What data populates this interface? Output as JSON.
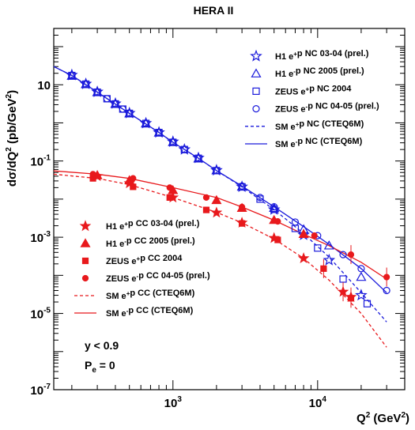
{
  "chart_data": {
    "type": "scatter",
    "title": "HERA II",
    "xlabel": "Q",
    "xlabel_sup": "2",
    "xlabel_unit": " (GeV",
    "xlabel_unit_sup": "2",
    "xlabel_close": ")",
    "ylabel": "dσ/dQ",
    "ylabel_sup": "2",
    "ylabel_unit": " (pb/GeV",
    "ylabel_unit_sup": "2",
    "ylabel_close": ")",
    "x_scale": "log",
    "y_scale": "log",
    "xlim": [
      150,
      40000
    ],
    "ylim": [
      1e-07,
      300
    ],
    "x_tick_labels": [
      {
        "value": 1000,
        "base": "10",
        "exp": "3"
      },
      {
        "value": 10000,
        "base": "10",
        "exp": "4"
      }
    ],
    "y_tick_labels": [
      {
        "value": 10,
        "text": "10",
        "base": "",
        "exp": ""
      },
      {
        "value": 0.1,
        "text": "",
        "base": "10",
        "exp": "-1"
      },
      {
        "value": 0.001,
        "text": "",
        "base": "10",
        "exp": "-3"
      },
      {
        "value": 1e-05,
        "text": "",
        "base": "10",
        "exp": "-5"
      },
      {
        "value": 1e-07,
        "text": "",
        "base": "10",
        "exp": "-7"
      }
    ],
    "annotations": [
      {
        "id": "ycut",
        "text": "y < 0.9"
      },
      {
        "id": "pe",
        "text": "P",
        "sub": "e",
        "rest": " = 0"
      }
    ],
    "nc_x": [
      200,
      250,
      300,
      350,
      400,
      450,
      500,
      650,
      800,
      1000,
      1200,
      1500,
      2000,
      3000,
      5000,
      8000,
      12000,
      20000,
      30000
    ],
    "cc_x": [
      300,
      500,
      1000,
      2000,
      3000,
      5000,
      8000,
      15000,
      30000
    ],
    "series": [
      {
        "id": "h1_ep_nc",
        "name": "H1 e+p NC 03-04 (prel.)",
        "legend_parts": [
          [
            "H1 e",
            ""
          ],
          [
            "+",
            "sup"
          ],
          [
            "p NC 03-04 (prel.)",
            ""
          ]
        ],
        "color": "#1a1adb",
        "marker": "star-open",
        "legend_group": "nc",
        "points": [
          [
            200,
            18
          ],
          [
            250,
            10.5
          ],
          [
            300,
            6.5
          ],
          [
            400,
            3.2
          ],
          [
            500,
            1.8
          ],
          [
            650,
            0.98
          ],
          [
            800,
            0.56
          ],
          [
            1000,
            0.32
          ],
          [
            1200,
            0.2
          ],
          [
            1500,
            0.12
          ],
          [
            2000,
            0.057
          ],
          [
            3000,
            0.021
          ],
          [
            5000,
            0.0053
          ],
          [
            8000,
            0.00115
          ],
          [
            12000,
            0.00025
          ],
          [
            20000,
            3e-05
          ]
        ]
      },
      {
        "id": "h1_em_nc",
        "name": "H1 e-p NC 2005 (prel.)",
        "legend_parts": [
          [
            "H1 e",
            ""
          ],
          [
            "-",
            "sup"
          ],
          [
            "p NC 2005 (prel.)",
            ""
          ]
        ],
        "color": "#1a1adb",
        "marker": "tri-open",
        "legend_group": "nc",
        "points": [
          [
            200,
            17
          ],
          [
            250,
            10.2
          ],
          [
            300,
            6.3
          ],
          [
            400,
            3.1
          ],
          [
            500,
            1.75
          ],
          [
            650,
            0.95
          ],
          [
            800,
            0.55
          ],
          [
            1000,
            0.31
          ],
          [
            1500,
            0.115
          ],
          [
            2000,
            0.056
          ],
          [
            3000,
            0.021
          ],
          [
            5000,
            0.0058
          ],
          [
            8000,
            0.0016
          ],
          [
            12000,
            0.0006
          ],
          [
            20000,
            9e-05
          ]
        ]
      },
      {
        "id": "zeus_ep_nc",
        "name": "ZEUS e+p NC 2004",
        "legend_parts": [
          [
            "ZEUS e",
            ""
          ],
          [
            "+",
            "sup"
          ],
          [
            "p NC 2004",
            ""
          ]
        ],
        "color": "#1a1adb",
        "marker": "square-open",
        "legend_group": "nc",
        "points": [
          [
            200,
            17.5
          ],
          [
            250,
            10.4
          ],
          [
            300,
            6.4
          ],
          [
            350,
            4.3
          ],
          [
            400,
            3.15
          ],
          [
            450,
            2.3
          ],
          [
            500,
            1.78
          ],
          [
            650,
            0.97
          ],
          [
            800,
            0.56
          ],
          [
            1000,
            0.31
          ],
          [
            1200,
            0.2
          ],
          [
            1500,
            0.118
          ],
          [
            2000,
            0.056
          ],
          [
            3000,
            0.021
          ],
          [
            4000,
            0.01
          ],
          [
            5000,
            0.0054
          ],
          [
            7000,
            0.0017
          ],
          [
            10000,
            0.00052
          ],
          [
            15000,
            8e-05
          ],
          [
            22000,
            1.8e-05
          ]
        ]
      },
      {
        "id": "zeus_em_nc",
        "name": "ZEUS e-p NC 04-05 (prel.)",
        "legend_parts": [
          [
            "ZEUS e",
            ""
          ],
          [
            "-",
            "sup"
          ],
          [
            "p NC 04-05 (prel.)",
            ""
          ]
        ],
        "color": "#1a1adb",
        "marker": "circle-open",
        "legend_group": "nc",
        "points": [
          [
            200,
            17.8
          ],
          [
            250,
            10.3
          ],
          [
            300,
            6.4
          ],
          [
            350,
            4.3
          ],
          [
            400,
            3.15
          ],
          [
            450,
            2.3
          ],
          [
            500,
            1.78
          ],
          [
            650,
            0.96
          ],
          [
            800,
            0.56
          ],
          [
            1000,
            0.31
          ],
          [
            1200,
            0.2
          ],
          [
            1500,
            0.118
          ],
          [
            2000,
            0.056
          ],
          [
            3000,
            0.022
          ],
          [
            4000,
            0.011
          ],
          [
            5000,
            0.0063
          ],
          [
            7000,
            0.0025
          ],
          [
            10000,
            0.0011
          ],
          [
            15000,
            0.00035
          ],
          [
            20000,
            0.00015
          ],
          [
            30000,
            4e-05
          ]
        ]
      },
      {
        "id": "sm_ep_nc",
        "name": "SM e+p NC (CTEQ6M)",
        "legend_parts": [
          [
            "SM e",
            ""
          ],
          [
            "+",
            "sup"
          ],
          [
            "p NC (CTEQ6M)",
            ""
          ]
        ],
        "color": "#1a1adb",
        "marker": "dashed-line",
        "legend_group": "nc",
        "curve": [
          [
            150,
            30
          ],
          [
            200,
            17.5
          ],
          [
            300,
            6.4
          ],
          [
            500,
            1.78
          ],
          [
            800,
            0.56
          ],
          [
            1000,
            0.31
          ],
          [
            1500,
            0.118
          ],
          [
            2000,
            0.056
          ],
          [
            3000,
            0.021
          ],
          [
            5000,
            0.0053
          ],
          [
            8000,
            0.00125
          ],
          [
            12000,
            0.0003
          ],
          [
            20000,
            3.5e-05
          ],
          [
            30000,
            6e-06
          ]
        ]
      },
      {
        "id": "sm_em_nc",
        "name": "SM e-p NC (CTEQ6M)",
        "legend_parts": [
          [
            "SM e",
            ""
          ],
          [
            "-",
            "sup"
          ],
          [
            "p NC (CTEQ6M)",
            ""
          ]
        ],
        "color": "#1a1adb",
        "marker": "solid-line",
        "legend_group": "nc",
        "curve": [
          [
            150,
            30
          ],
          [
            200,
            17.5
          ],
          [
            300,
            6.4
          ],
          [
            500,
            1.78
          ],
          [
            800,
            0.56
          ],
          [
            1000,
            0.31
          ],
          [
            1500,
            0.118
          ],
          [
            2000,
            0.056
          ],
          [
            3000,
            0.022
          ],
          [
            5000,
            0.0063
          ],
          [
            8000,
            0.0019
          ],
          [
            12000,
            0.00065
          ],
          [
            20000,
            0.00015
          ],
          [
            30000,
            3.5e-05
          ]
        ]
      },
      {
        "id": "h1_ep_cc",
        "name": "H1 e+p CC 03-04 (prel.)",
        "legend_parts": [
          [
            "H1 e",
            ""
          ],
          [
            "+",
            "sup"
          ],
          [
            "p CC 03-04 (prel.)",
            ""
          ]
        ],
        "color": "#e8191c",
        "marker": "star",
        "legend_group": "cc",
        "points": [
          [
            300,
            0.04
          ],
          [
            500,
            0.026
          ],
          [
            1000,
            0.011
          ],
          [
            2000,
            0.0044
          ],
          [
            3000,
            0.0024
          ],
          [
            5000,
            0.00095
          ],
          [
            8000,
            0.00028
          ],
          [
            15000,
            3.7e-05
          ],
          [
            17000,
            2.7e-05
          ]
        ]
      },
      {
        "id": "h1_em_cc",
        "name": "H1 e-p CC 2005 (prel.)",
        "legend_parts": [
          [
            "H1 e",
            ""
          ],
          [
            "-",
            "sup"
          ],
          [
            "p CC 2005 (prel.)",
            ""
          ]
        ],
        "color": "#e8191c",
        "marker": "triangle",
        "legend_group": "cc",
        "points": [
          [
            300,
            0.042
          ],
          [
            500,
            0.031
          ],
          [
            1000,
            0.017
          ],
          [
            2000,
            0.0093
          ],
          [
            3000,
            0.0058
          ],
          [
            5000,
            0.0028
          ],
          [
            8000,
            0.0012
          ]
        ]
      },
      {
        "id": "zeus_ep_cc",
        "name": "ZEUS e+p CC 2004",
        "legend_parts": [
          [
            "ZEUS e",
            ""
          ],
          [
            "+",
            "sup"
          ],
          [
            "p CC 2004",
            ""
          ]
        ],
        "color": "#e8191c",
        "marker": "square",
        "legend_group": "cc",
        "points": [
          [
            280,
            0.035
          ],
          [
            530,
            0.021
          ],
          [
            950,
            0.011
          ],
          [
            1700,
            0.0052
          ],
          [
            3000,
            0.0023
          ],
          [
            5300,
            0.00085
          ],
          [
            11000,
            0.00015
          ],
          [
            17000,
            2.5e-05
          ]
        ]
      },
      {
        "id": "zeus_em_cc",
        "name": "ZEUS e-p CC 04-05 (prel.)",
        "legend_parts": [
          [
            "ZEUS e",
            ""
          ],
          [
            "-",
            "sup"
          ],
          [
            "p CC 04-05 (prel.)",
            ""
          ]
        ],
        "color": "#e8191c",
        "marker": "circle",
        "legend_group": "cc",
        "points": [
          [
            280,
            0.045
          ],
          [
            530,
            0.035
          ],
          [
            950,
            0.02
          ],
          [
            1700,
            0.011
          ],
          [
            3000,
            0.0062
          ],
          [
            5300,
            0.0026
          ],
          [
            9500,
            0.0011
          ],
          [
            17000,
            0.00035
          ],
          [
            30000,
            9e-05
          ]
        ]
      },
      {
        "id": "sm_ep_cc",
        "name": "SM e+p CC (CTEQ6M)",
        "legend_parts": [
          [
            "SM e",
            ""
          ],
          [
            "+",
            "sup"
          ],
          [
            "p CC (CTEQ6M)",
            ""
          ]
        ],
        "color": "#e8191c",
        "marker": "dashed-line",
        "legend_group": "cc",
        "curve": [
          [
            150,
            0.045
          ],
          [
            300,
            0.035
          ],
          [
            500,
            0.024
          ],
          [
            1000,
            0.011
          ],
          [
            2000,
            0.0045
          ],
          [
            3000,
            0.0024
          ],
          [
            5000,
            0.0009
          ],
          [
            8000,
            0.00028
          ],
          [
            12000,
            7.5e-05
          ],
          [
            20000,
            1e-05
          ],
          [
            30000,
            1.3e-06
          ]
        ]
      },
      {
        "id": "sm_em_cc",
        "name": "SM e-p CC (CTEQ6M)",
        "legend_parts": [
          [
            "SM e",
            ""
          ],
          [
            "-",
            "sup"
          ],
          [
            "p CC (CTEQ6M)",
            ""
          ]
        ],
        "color": "#e8191c",
        "marker": "solid-line",
        "legend_group": "cc",
        "curve": [
          [
            150,
            0.055
          ],
          [
            300,
            0.045
          ],
          [
            500,
            0.035
          ],
          [
            1000,
            0.02
          ],
          [
            2000,
            0.011
          ],
          [
            3000,
            0.0062
          ],
          [
            5000,
            0.0028
          ],
          [
            8000,
            0.0012
          ],
          [
            12000,
            0.0006
          ],
          [
            20000,
            0.00022
          ],
          [
            30000,
            8e-05
          ]
        ]
      }
    ]
  }
}
